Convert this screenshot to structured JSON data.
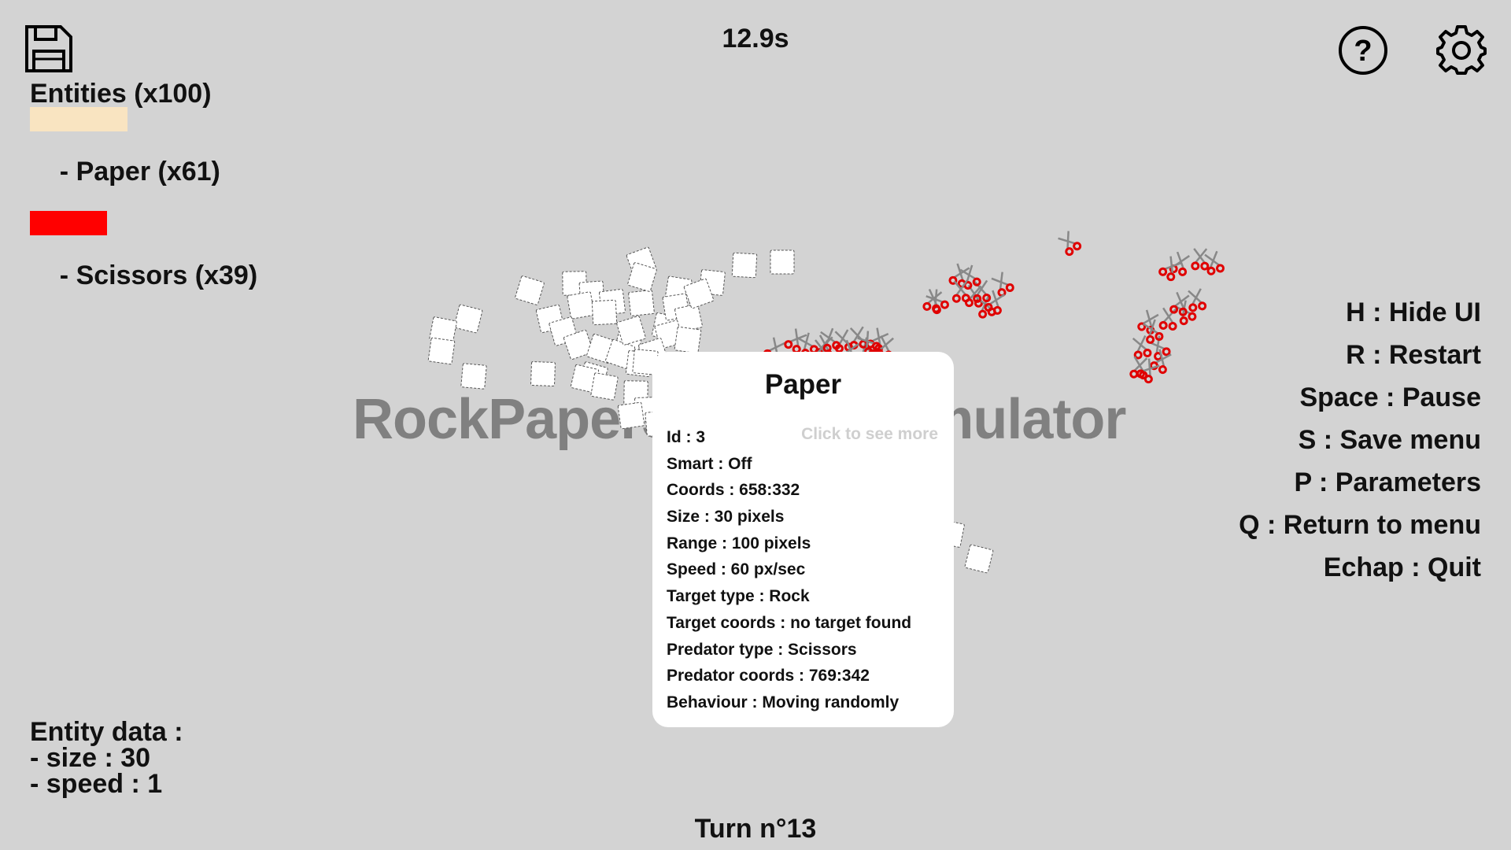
{
  "timer": "12.9s",
  "entities": {
    "header": "Entities (x100)",
    "items": [
      {
        "label": "- Paper (x61)",
        "share": 0.61,
        "color": "#f9e4c1"
      },
      {
        "label": "- Scissors (x39)",
        "share": 0.39,
        "color": "#ff0000"
      }
    ]
  },
  "watermark": "RockPaperScissorsSimulator",
  "shortcuts": [
    "H : Hide UI",
    "R : Restart",
    "Space : Pause",
    "S : Save menu",
    "P : Parameters",
    "Q : Return to menu",
    "Echap : Quit"
  ],
  "entity_data": {
    "header": "Entity data :",
    "size": "- size : 30",
    "speed": "- speed : 1"
  },
  "turn": "Turn n°13",
  "tooltip": {
    "title": "Paper",
    "hint": "Click to see more",
    "lines": [
      "Id : 3",
      "Smart : Off",
      "Coords : 658:332",
      "Size : 30 pixels",
      "Range : 100 pixels",
      "Speed : 60 px/sec",
      "Target type : Rock",
      "Target coords : no target found",
      "Predator type : Scissors",
      "Predator coords : 769:342",
      "Behaviour : Moving randomly"
    ]
  },
  "icons": {
    "save": "floppy-disk-icon",
    "help": "question-circle-icon",
    "settings": "gear-icon"
  },
  "colors": {
    "background": "#d3d3d3",
    "paper_bar": "#f9e4c1",
    "scissors": "#ff0000",
    "watermark": "#808080"
  }
}
